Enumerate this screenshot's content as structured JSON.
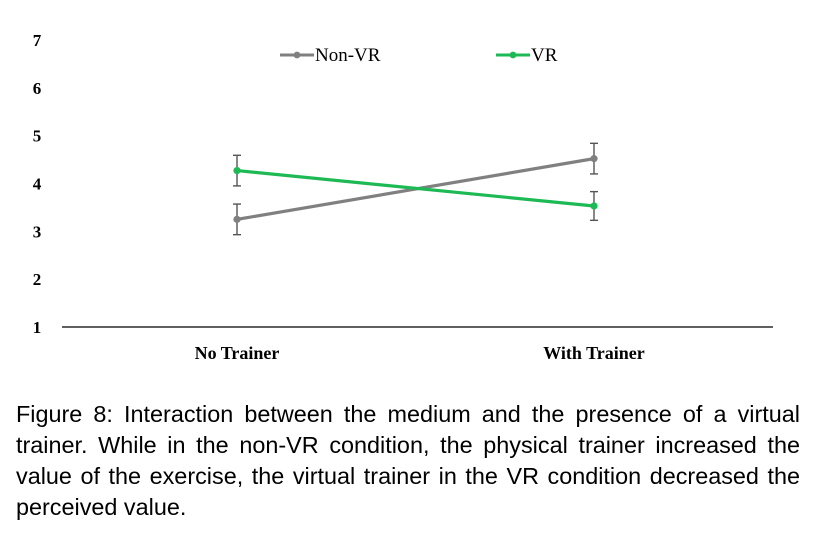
{
  "chart_data": {
    "type": "line",
    "categories": [
      "No Trainer",
      "With Trainer"
    ],
    "ylim": [
      1,
      7
    ],
    "yticks": [
      1,
      2,
      3,
      4,
      5,
      6,
      7
    ],
    "grid": false,
    "legend_position": "top",
    "series": [
      {
        "name": "Non-VR",
        "color": "#808080",
        "values": [
          3.25,
          4.52
        ],
        "error": [
          0.32,
          0.32
        ]
      },
      {
        "name": "VR",
        "color": "#1db954",
        "values": [
          4.27,
          3.53
        ],
        "error": [
          0.32,
          0.3
        ]
      }
    ]
  },
  "caption": "Figure 8: Interaction between the medium and the presence of a virtual trainer. While in the non-VR condition, the physical trainer increased the value of the exercise, the virtual trainer in the VR condition decreased the perceived value."
}
